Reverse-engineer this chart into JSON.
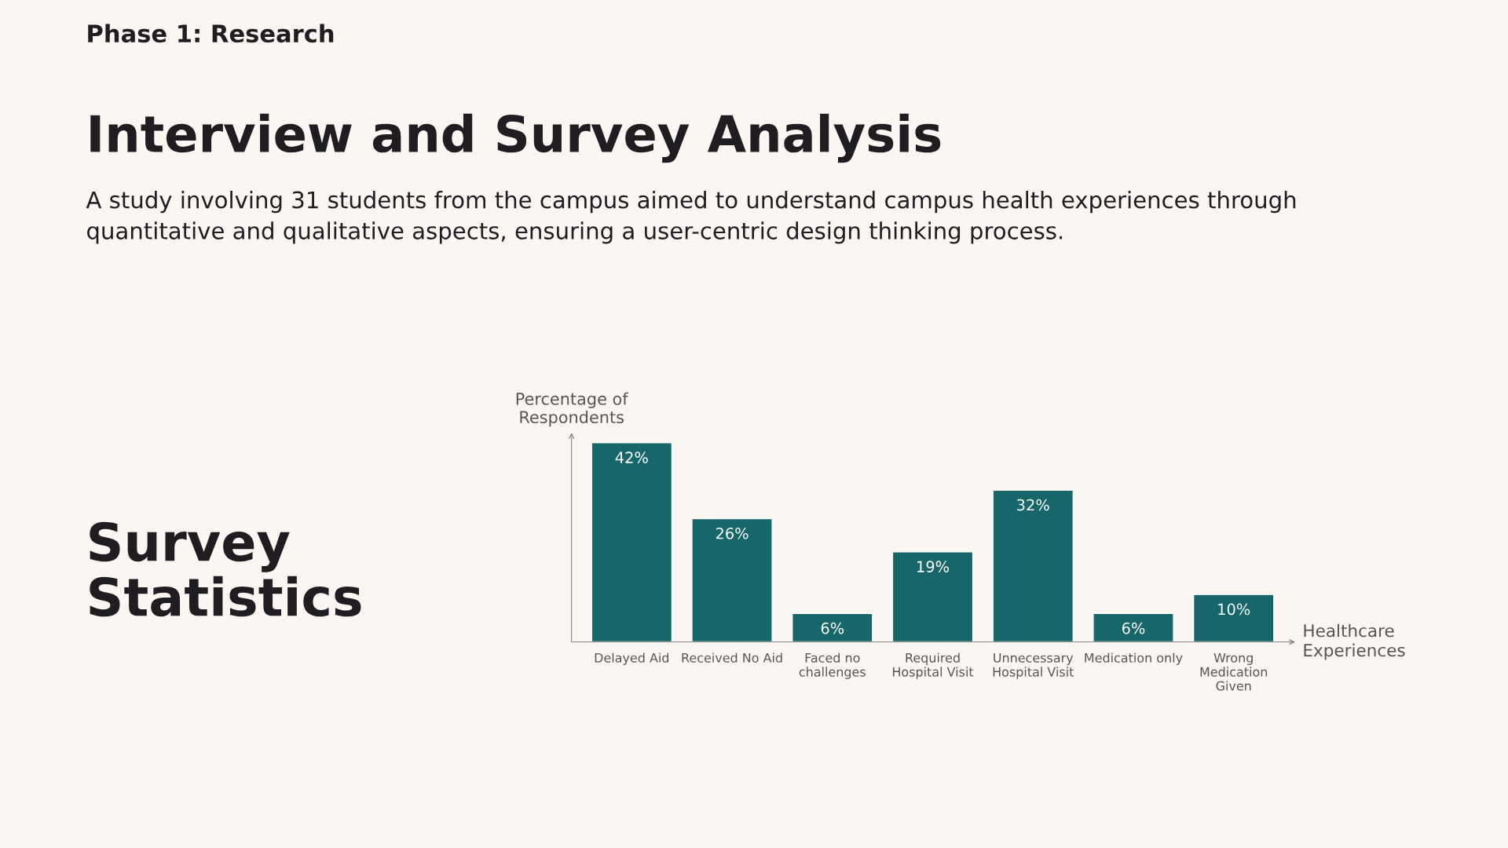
{
  "chart_data": {
    "type": "bar",
    "title": "Interview and Survey Analysis",
    "subtitle": "A study involving 31 students from the campus aimed to understand campus health experiences through\nquantitative and qualitative aspects, ensuring a user-centric design thinking process.",
    "annotations": [
      "Phase 1: Research",
      "Survey\nStatistics"
    ],
    "ylabel": "Percentage of\nRespondents",
    "xlabel": "Healthcare\nExperiences",
    "categories": [
      "Delayed Aid",
      "Received No Aid",
      "Faced no\nchallenges",
      "Required\nHospital Visit",
      "Unnecessary\nHospital Visit",
      "Medication only",
      "Wrong\nMedication\nGiven"
    ],
    "values": [
      42,
      26,
      6,
      19,
      32,
      6,
      10
    ],
    "value_labels": [
      "42%",
      "26%",
      "6%",
      "19%",
      "32%",
      "6%",
      "10%"
    ],
    "color": "#17676a",
    "grid": false,
    "legend": false
  }
}
